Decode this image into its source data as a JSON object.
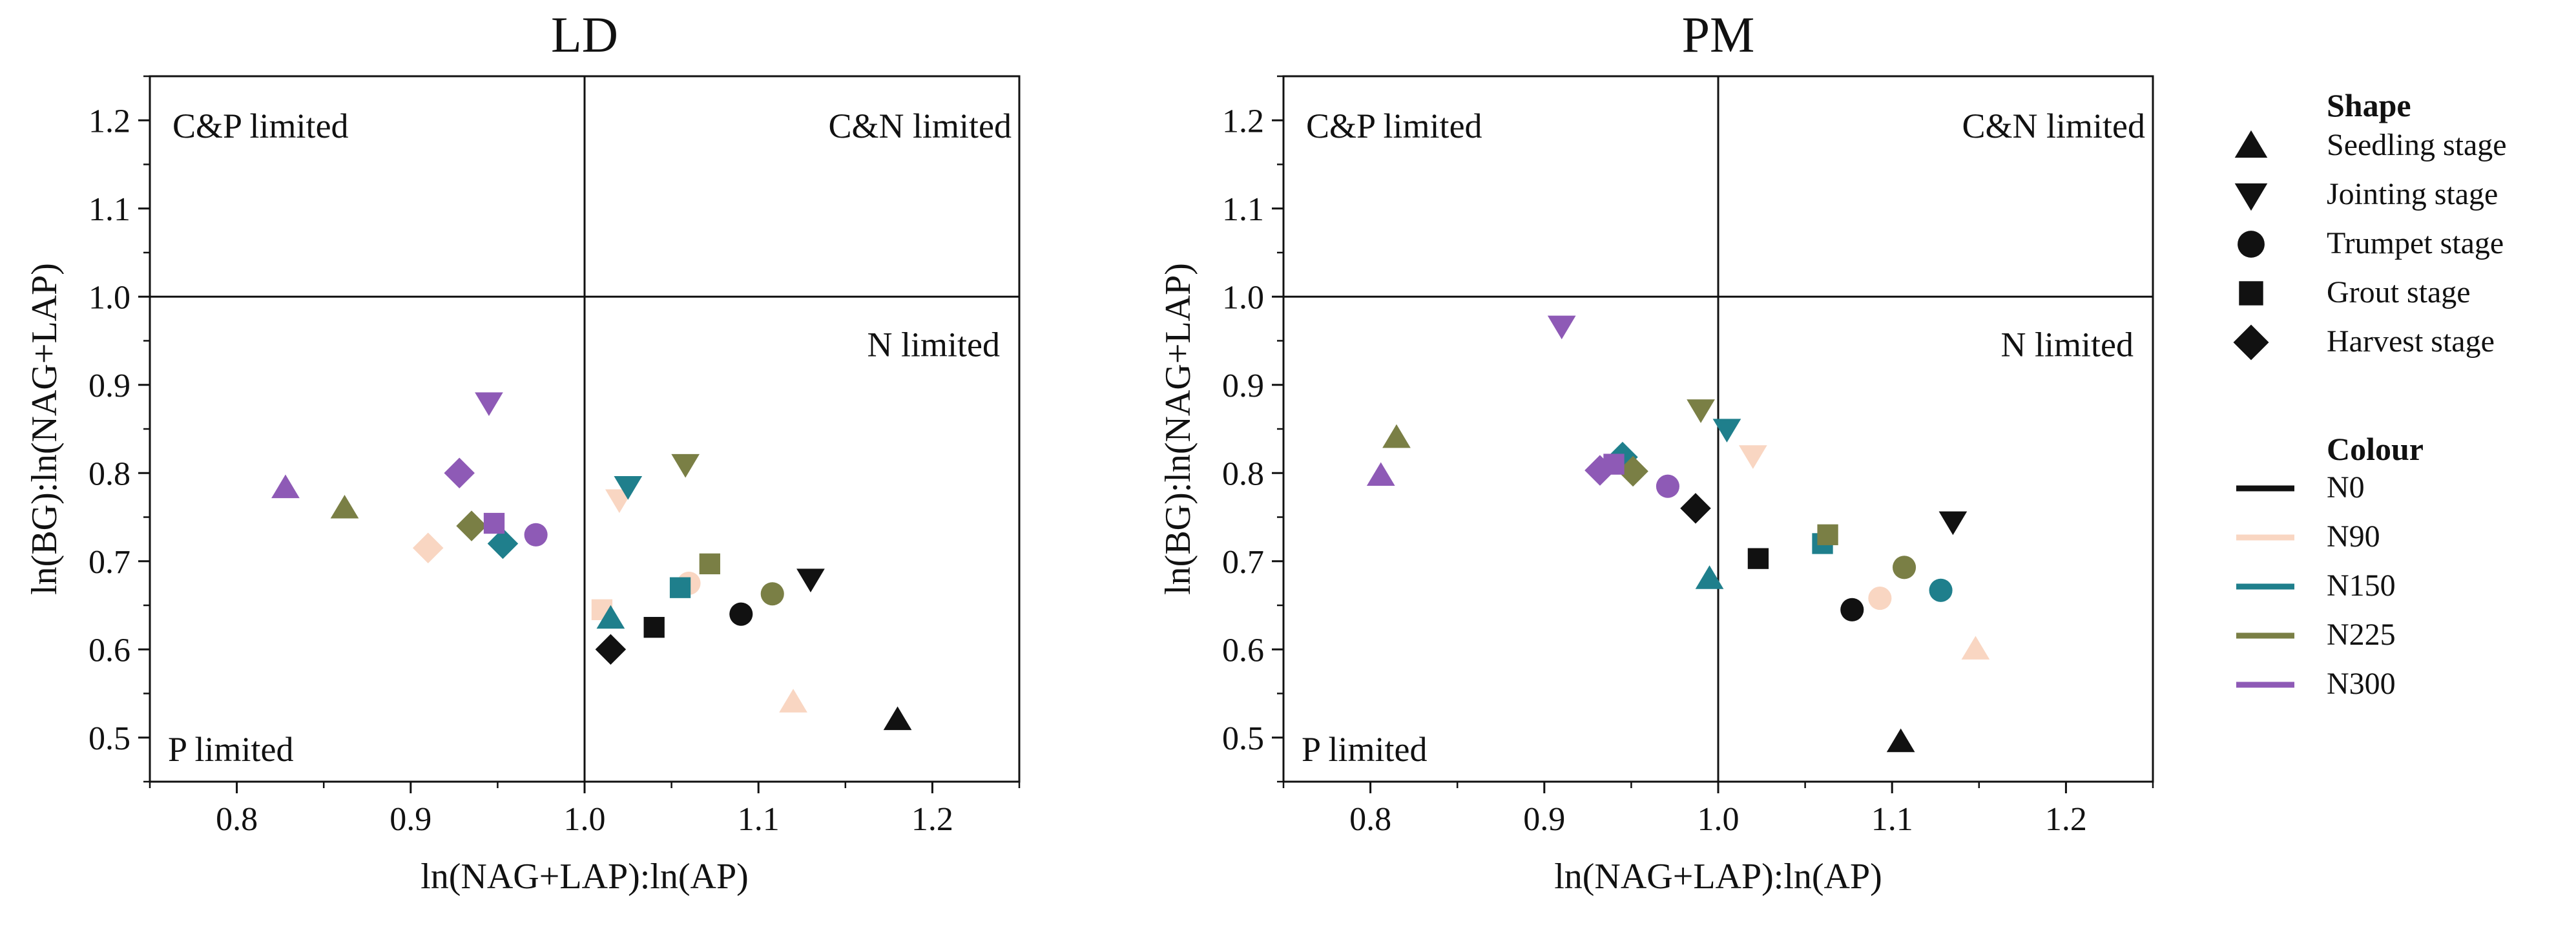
{
  "chart_data": [
    {
      "type": "scatter",
      "title": "LD",
      "xlabel": "ln(NAG+LAP):ln(AP)",
      "ylabel": "ln(BG):ln(NAG+LAP)",
      "xlim": [
        0.75,
        1.25
      ],
      "ylim": [
        0.45,
        1.25
      ],
      "xticks": [
        "0.8",
        "0.9",
        "1.0",
        "1.1",
        "1.2"
      ],
      "yticks": [
        "0.5",
        "0.6",
        "0.7",
        "0.8",
        "0.9",
        "1.0",
        "1.1",
        "1.2"
      ],
      "reference_lines": {
        "x": 1.0,
        "y": 1.0
      },
      "quadrant_labels": {
        "top_left": "C&P limited",
        "top_right": "C&N limited",
        "bottom_right": "N limited",
        "bottom_left": "P limited"
      },
      "grid": false,
      "points": [
        {
          "x": 1.18,
          "y": 0.52,
          "group": "N0",
          "stage": "Seedling stage"
        },
        {
          "x": 1.13,
          "y": 0.68,
          "group": "N0",
          "stage": "Jointing stage"
        },
        {
          "x": 1.09,
          "y": 0.64,
          "group": "N0",
          "stage": "Trumpet stage"
        },
        {
          "x": 1.04,
          "y": 0.625,
          "group": "N0",
          "stage": "Grout stage"
        },
        {
          "x": 1.015,
          "y": 0.6,
          "group": "N0",
          "stage": "Harvest stage"
        },
        {
          "x": 1.12,
          "y": 0.54,
          "group": "N90",
          "stage": "Seedling stage"
        },
        {
          "x": 1.02,
          "y": 0.77,
          "group": "N90",
          "stage": "Jointing stage"
        },
        {
          "x": 1.06,
          "y": 0.675,
          "group": "N90",
          "stage": "Trumpet stage"
        },
        {
          "x": 1.01,
          "y": 0.645,
          "group": "N90",
          "stage": "Grout stage"
        },
        {
          "x": 0.91,
          "y": 0.715,
          "group": "N90",
          "stage": "Harvest stage"
        },
        {
          "x": 1.015,
          "y": 0.635,
          "group": "N150",
          "stage": "Seedling stage"
        },
        {
          "x": 1.025,
          "y": 0.785,
          "group": "N150",
          "stage": "Jointing stage"
        },
        {
          "x": 1.055,
          "y": 0.67,
          "group": "N150",
          "stage": "Grout stage"
        },
        {
          "x": 0.953,
          "y": 0.72,
          "group": "N150",
          "stage": "Harvest stage"
        },
        {
          "x": 0.862,
          "y": 0.76,
          "group": "N225",
          "stage": "Seedling stage"
        },
        {
          "x": 1.058,
          "y": 0.81,
          "group": "N225",
          "stage": "Jointing stage"
        },
        {
          "x": 1.108,
          "y": 0.663,
          "group": "N225",
          "stage": "Trumpet stage"
        },
        {
          "x": 1.072,
          "y": 0.697,
          "group": "N225",
          "stage": "Grout stage"
        },
        {
          "x": 0.935,
          "y": 0.74,
          "group": "N225",
          "stage": "Harvest stage"
        },
        {
          "x": 0.828,
          "y": 0.783,
          "group": "N300",
          "stage": "Seedling stage"
        },
        {
          "x": 0.945,
          "y": 0.88,
          "group": "N300",
          "stage": "Jointing stage"
        },
        {
          "x": 0.972,
          "y": 0.73,
          "group": "N300",
          "stage": "Trumpet stage"
        },
        {
          "x": 0.948,
          "y": 0.743,
          "group": "N300",
          "stage": "Grout stage"
        },
        {
          "x": 0.928,
          "y": 0.8,
          "group": "N300",
          "stage": "Harvest stage"
        }
      ]
    },
    {
      "type": "scatter",
      "title": "PM",
      "xlabel": "ln(NAG+LAP):ln(AP)",
      "ylabel": "ln(BG):ln(NAG+LAP)",
      "xlim": [
        0.75,
        1.25
      ],
      "ylim": [
        0.45,
        1.25
      ],
      "xticks": [
        "0.8",
        "0.9",
        "1.0",
        "1.1",
        "1.2"
      ],
      "yticks": [
        "0.5",
        "0.6",
        "0.7",
        "0.8",
        "0.9",
        "1.0",
        "1.1",
        "1.2"
      ],
      "reference_lines": {
        "x": 1.0,
        "y": 1.0
      },
      "quadrant_labels": {
        "top_left": "C&P limited",
        "top_right": "C&N limited",
        "bottom_right": "N limited",
        "bottom_left": "P limited"
      },
      "grid": false,
      "points": [
        {
          "x": 1.105,
          "y": 0.495,
          "group": "N0",
          "stage": "Seedling stage"
        },
        {
          "x": 1.135,
          "y": 0.745,
          "group": "N0",
          "stage": "Jointing stage"
        },
        {
          "x": 1.077,
          "y": 0.645,
          "group": "N0",
          "stage": "Trumpet stage"
        },
        {
          "x": 1.023,
          "y": 0.703,
          "group": "N0",
          "stage": "Grout stage"
        },
        {
          "x": 0.987,
          "y": 0.76,
          "group": "N0",
          "stage": "Harvest stage"
        },
        {
          "x": 1.148,
          "y": 0.6,
          "group": "N90",
          "stage": "Seedling stage"
        },
        {
          "x": 1.02,
          "y": 0.82,
          "group": "N90",
          "stage": "Jointing stage"
        },
        {
          "x": 1.093,
          "y": 0.658,
          "group": "N90",
          "stage": "Trumpet stage"
        },
        {
          "x": 0.995,
          "y": 0.68,
          "group": "N150",
          "stage": "Seedling stage"
        },
        {
          "x": 1.005,
          "y": 0.85,
          "group": "N150",
          "stage": "Jointing stage"
        },
        {
          "x": 1.128,
          "y": 0.667,
          "group": "N150",
          "stage": "Trumpet stage"
        },
        {
          "x": 1.06,
          "y": 0.72,
          "group": "N150",
          "stage": "Grout stage"
        },
        {
          "x": 0.945,
          "y": 0.818,
          "group": "N150",
          "stage": "Harvest stage"
        },
        {
          "x": 0.815,
          "y": 0.84,
          "group": "N225",
          "stage": "Seedling stage"
        },
        {
          "x": 0.99,
          "y": 0.872,
          "group": "N225",
          "stage": "Jointing stage"
        },
        {
          "x": 1.107,
          "y": 0.693,
          "group": "N225",
          "stage": "Trumpet stage"
        },
        {
          "x": 1.063,
          "y": 0.73,
          "group": "N225",
          "stage": "Grout stage"
        },
        {
          "x": 0.951,
          "y": 0.802,
          "group": "N225",
          "stage": "Harvest stage"
        },
        {
          "x": 0.806,
          "y": 0.797,
          "group": "N300",
          "stage": "Seedling stage"
        },
        {
          "x": 0.91,
          "y": 0.967,
          "group": "N300",
          "stage": "Jointing stage"
        },
        {
          "x": 0.971,
          "y": 0.785,
          "group": "N300",
          "stage": "Trumpet stage"
        },
        {
          "x": 0.94,
          "y": 0.81,
          "group": "N300",
          "stage": "Grout stage"
        },
        {
          "x": 0.932,
          "y": 0.803,
          "group": "N300",
          "stage": "Harvest stage"
        }
      ]
    }
  ],
  "legend": {
    "shape_heading": "Shape",
    "shapes": [
      {
        "label": "Seedling stage",
        "marker": "triangle-up"
      },
      {
        "label": "Jointing stage",
        "marker": "triangle-down"
      },
      {
        "label": "Trumpet stage",
        "marker": "circle"
      },
      {
        "label": "Grout stage",
        "marker": "square"
      },
      {
        "label": "Harvest stage",
        "marker": "diamond"
      }
    ],
    "colour_heading": "Colour",
    "colours": [
      {
        "label": "N0",
        "color": "#111111"
      },
      {
        "label": "N90",
        "color": "#F9D6C2"
      },
      {
        "label": "N150",
        "color": "#1F7F8C"
      },
      {
        "label": "N225",
        "color": "#7A7F45"
      },
      {
        "label": "N300",
        "color": "#8E5AB6"
      }
    ]
  }
}
